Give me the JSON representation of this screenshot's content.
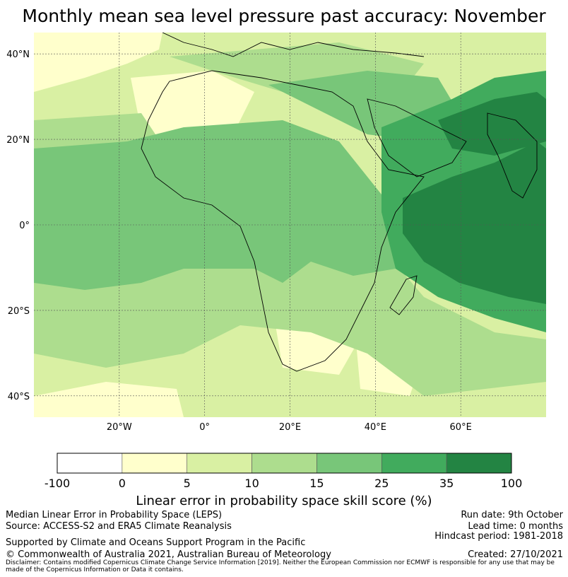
{
  "title": "Monthly mean sea level pressure past accuracy: November",
  "map": {
    "region": "Africa and Indian Ocean",
    "lat_ticks": [
      "40°N",
      "20°N",
      "0°",
      "20°S",
      "40°S"
    ],
    "lat_values": [
      40,
      20,
      0,
      -20,
      -40
    ],
    "lon_ticks": [
      "20°W",
      "0°",
      "20°E",
      "40°E",
      "60°E"
    ],
    "lon_values": [
      -20,
      0,
      20,
      40,
      60
    ],
    "lon_range": [
      -40,
      80
    ],
    "lat_range": [
      -45,
      45
    ]
  },
  "colorbar": {
    "ticks": [
      "-100",
      "0",
      "5",
      "10",
      "15",
      "25",
      "35",
      "100"
    ],
    "colors": [
      "#ffffff",
      "#ffffcc",
      "#d9f0a3",
      "#addd8e",
      "#78c679",
      "#41ab5d",
      "#238443"
    ],
    "label": "Linear error in probability space skill score (%)"
  },
  "footer": {
    "left_line1": "Median Linear Error in Probability Space (LEPS)",
    "left_line2": "Source: ACCESS-S2 and ERA5 Climate Reanalysis",
    "support": "Supported by Climate and Oceans Support Program in the Pacific",
    "copyright": "© Commonwealth of Australia 2021, Australian Bureau of Meteorology",
    "run_date": "Run date: 9th October",
    "lead_time": "Lead time: 0 months",
    "hindcast": "Hindcast period: 1981-2018",
    "created": "Created: 27/10/2021",
    "disclaimer": "Disclaimer: Contains modified Copernicus Climate Change Service Information [2019]. Neither the European Commission nor ECMWF is responsible for any use that may be made of the Copernicus Information or Data it contains."
  }
}
